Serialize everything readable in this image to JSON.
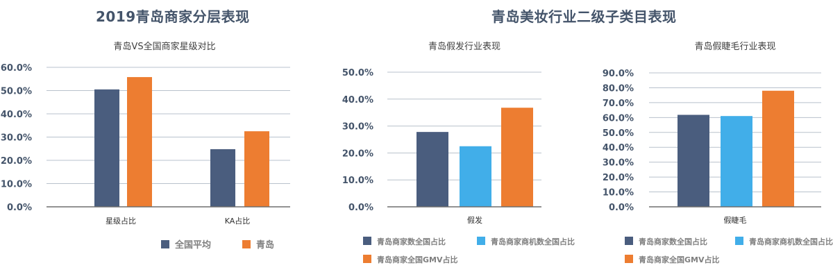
{
  "page": {
    "left_title": "2019青岛商家分层表现",
    "right_title": "青岛美妆行业二级子类目表现"
  },
  "colors": {
    "dark_blue": "#4a5d7e",
    "orange": "#ed7d31",
    "light_blue": "#41aee9",
    "title": "#44546a",
    "grid": "#b8c1cc",
    "axis": "#6e6e6e"
  },
  "chart_data": [
    {
      "type": "bar",
      "title": "青岛VS全国商家星级对比",
      "categories": [
        "星级占比",
        "KA占比"
      ],
      "series": [
        {
          "name": "全国平均",
          "color": "#4a5d7e",
          "values": [
            50.5,
            24.8
          ]
        },
        {
          "name": "青岛",
          "color": "#ed7d31",
          "values": [
            55.8,
            32.5
          ]
        }
      ],
      "ylim": [
        0,
        60
      ],
      "yticks": [
        "0.0%",
        "10.0%",
        "20.0%",
        "30.0%",
        "40.0%",
        "50.0%",
        "60.0%"
      ],
      "grid": true,
      "legend": "bottom"
    },
    {
      "type": "bar",
      "title": "青岛假发行业表现",
      "categories": [
        "假发"
      ],
      "series": [
        {
          "name": "青岛商家数全国占比",
          "color": "#4a5d7e",
          "values": [
            27.8
          ]
        },
        {
          "name": "青岛商家商机数全国占比",
          "color": "#41aee9",
          "values": [
            22.5
          ]
        },
        {
          "name": "青岛商家全国GMV占比",
          "color": "#ed7d31",
          "values": [
            36.8
          ]
        }
      ],
      "ylim": [
        0,
        50
      ],
      "yticks": [
        "0.0%",
        "10.0%",
        "20.0%",
        "30.0%",
        "40.0%",
        "50.0%"
      ],
      "grid": true,
      "legend": "bottom"
    },
    {
      "type": "bar",
      "title": "青岛假睫毛行业表现",
      "categories": [
        "假睫毛"
      ],
      "series": [
        {
          "name": "青岛商家数全国占比",
          "color": "#4a5d7e",
          "values": [
            61.8
          ]
        },
        {
          "name": "青岛商家商机数全国占比",
          "color": "#41aee9",
          "values": [
            61.0
          ]
        },
        {
          "name": "青岛商家全国GMV占比",
          "color": "#ed7d31",
          "values": [
            78.0
          ]
        }
      ],
      "ylim": [
        0,
        90
      ],
      "yticks": [
        "0.0%",
        "10.0%",
        "20.0%",
        "30.0%",
        "40.0%",
        "50.0%",
        "60.0%",
        "70.0%",
        "80.0%",
        "90.0%"
      ],
      "grid": true,
      "legend": "bottom"
    }
  ]
}
